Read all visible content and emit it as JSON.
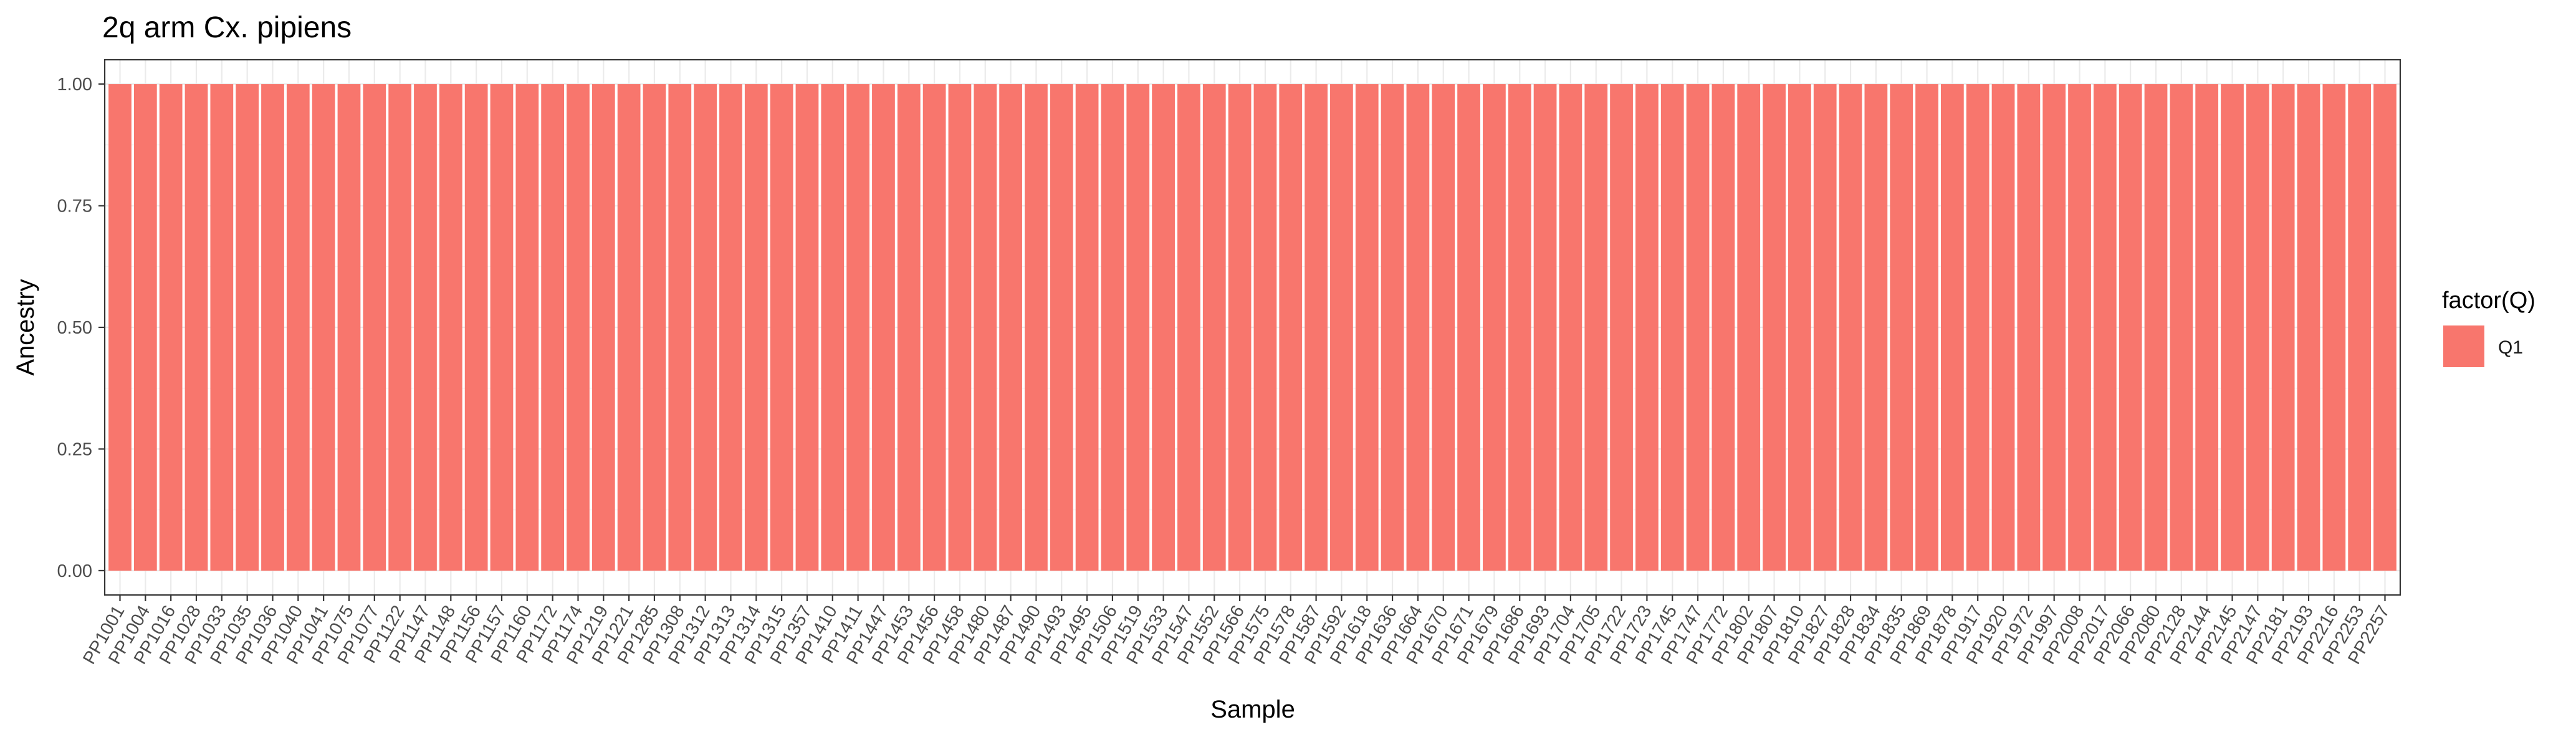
{
  "chart_data": {
    "type": "bar",
    "title": "2q arm Cx. pipiens",
    "xlabel": "Sample",
    "ylabel": "Ancestry",
    "ylim": [
      -0.05,
      1.05
    ],
    "yticks": [
      "0.00",
      "0.25",
      "0.50",
      "0.75",
      "1.00"
    ],
    "grid": true,
    "stacked": true,
    "legend": {
      "title": "factor(Q)",
      "position": "right"
    },
    "categories": [
      "PP1001",
      "PP1004",
      "PP1016",
      "PP1028",
      "PP1033",
      "PP1035",
      "PP1036",
      "PP1040",
      "PP1041",
      "PP1075",
      "PP1077",
      "PP1122",
      "PP1147",
      "PP1148",
      "PP1156",
      "PP1157",
      "PP1160",
      "PP1172",
      "PP1174",
      "PP1219",
      "PP1221",
      "PP1285",
      "PP1308",
      "PP1312",
      "PP1313",
      "PP1314",
      "PP1315",
      "PP1357",
      "PP1410",
      "PP1411",
      "PP1447",
      "PP1453",
      "PP1456",
      "PP1458",
      "PP1480",
      "PP1487",
      "PP1490",
      "PP1493",
      "PP1495",
      "PP1506",
      "PP1519",
      "PP1533",
      "PP1547",
      "PP1552",
      "PP1566",
      "PP1575",
      "PP1578",
      "PP1587",
      "PP1592",
      "PP1618",
      "PP1636",
      "PP1664",
      "PP1670",
      "PP1671",
      "PP1679",
      "PP1686",
      "PP1693",
      "PP1704",
      "PP1705",
      "PP1722",
      "PP1723",
      "PP1745",
      "PP1747",
      "PP1772",
      "PP1802",
      "PP1807",
      "PP1810",
      "PP1827",
      "PP1828",
      "PP1834",
      "PP1835",
      "PP1869",
      "PP1878",
      "PP1917",
      "PP1920",
      "PP1972",
      "PP1997",
      "PP2008",
      "PP2017",
      "PP2066",
      "PP2080",
      "PP2128",
      "PP2144",
      "PP2145",
      "PP2147",
      "PP2181",
      "PP2193",
      "PP2216",
      "PP2253",
      "PP2257"
    ],
    "series": [
      {
        "name": "Q1",
        "color": "#F8766D",
        "values": [
          1,
          1,
          1,
          1,
          1,
          1,
          1,
          1,
          1,
          1,
          1,
          1,
          1,
          1,
          1,
          1,
          1,
          1,
          1,
          1,
          1,
          1,
          1,
          1,
          1,
          1,
          1,
          1,
          1,
          1,
          1,
          1,
          1,
          1,
          1,
          1,
          1,
          1,
          1,
          1,
          1,
          1,
          1,
          1,
          1,
          1,
          1,
          1,
          1,
          1,
          1,
          1,
          1,
          1,
          1,
          1,
          1,
          1,
          1,
          1,
          1,
          1,
          1,
          1,
          1,
          1,
          1,
          1,
          1,
          1,
          1,
          1,
          1,
          1,
          1,
          1,
          1,
          1,
          1,
          1,
          1,
          1,
          1,
          1,
          1,
          1,
          1,
          1,
          1,
          1
        ]
      }
    ]
  }
}
